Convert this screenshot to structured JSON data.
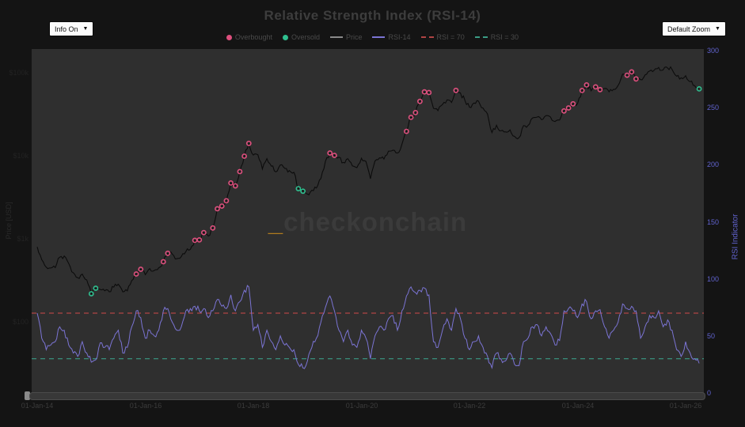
{
  "header": {
    "title": "Relative Strength Index (RSI-14)"
  },
  "controls": {
    "info_dropdown_label": "Info On",
    "zoom_dropdown_label": "Default Zoom",
    "caret": "▼"
  },
  "watermark": {
    "underscore": "_",
    "text": "checkonchain"
  },
  "legend": {
    "items": [
      {
        "label": "Overbought",
        "type": "dot",
        "color": "#dd4f7d"
      },
      {
        "label": "Oversold",
        "type": "dot",
        "color": "#2fbf8f"
      },
      {
        "label": "Price",
        "type": "line",
        "color": "#8a8a8a"
      },
      {
        "label": "RSI-14",
        "type": "line",
        "color": "#7b74d4"
      },
      {
        "label": "RSI = 70",
        "type": "dash",
        "color": "#b04444"
      },
      {
        "label": "RSI = 30",
        "type": "dash",
        "color": "#3a9c85"
      }
    ]
  },
  "colors": {
    "page_bg": "#141414",
    "plot_bg": "#2f2f2f",
    "price_line": "#0c0c0c",
    "rsi_line": "#7b74d4",
    "rsi_70_line": "#b04444",
    "rsi_30_line": "#3a9c85",
    "overbought_marker": "#dd4f7d",
    "oversold_marker": "#2fbf8f",
    "right_axis_text": "#6163cf",
    "watermark_accent": "#b07c1e"
  },
  "chart_data": {
    "type": "line",
    "title": "Relative Strength Index (RSI-14)",
    "x_start_month": "2014-01",
    "x_months_per_point": 1,
    "x_ticks": [
      {
        "month_index": 0,
        "label": "01-Jan-14"
      },
      {
        "month_index": 24,
        "label": "01-Jan-16"
      },
      {
        "month_index": 48,
        "label": "01-Jan-18"
      },
      {
        "month_index": 72,
        "label": "01-Jan-20"
      },
      {
        "month_index": 96,
        "label": "01-Jan-22"
      },
      {
        "month_index": 120,
        "label": "01-Jan-24"
      },
      {
        "month_index": 144,
        "label": "01-Jan-26"
      }
    ],
    "left_axis": {
      "title": "Price [USD]",
      "scale": "log",
      "ticks": [
        {
          "label": "$100k",
          "value": 100000
        },
        {
          "label": "$10k",
          "value": 10000
        },
        {
          "label": "$1k",
          "value": 1000
        },
        {
          "label": "$100",
          "value": 100
        }
      ]
    },
    "right_axis": {
      "title": "RSI Indicator",
      "scale": "linear",
      "range": [
        0,
        300
      ],
      "ticks": [
        300,
        250,
        200,
        150,
        100,
        50,
        0
      ]
    },
    "thresholds": [
      {
        "name": "RSI = 70",
        "value": 70,
        "color": "#b04444"
      },
      {
        "name": "RSI = 30",
        "value": 30,
        "color": "#3a9c85"
      }
    ],
    "series": [
      {
        "name": "Price",
        "axis": "left",
        "color": "#0c0c0c",
        "values": [
          800,
          560,
          455,
          445,
          450,
          600,
          620,
          505,
          390,
          340,
          375,
          320,
          218,
          254,
          245,
          236,
          230,
          262,
          284,
          230,
          236,
          314,
          377,
          430,
          370,
          437,
          416,
          448,
          530,
          670,
          655,
          575,
          610,
          700,
          745,
          960,
          970,
          1190,
          1080,
          1350,
          2300,
          2480,
          2870,
          4700,
          4340,
          6450,
          9900,
          14100,
          10200,
          10300,
          6930,
          9240,
          7490,
          6400,
          7750,
          7020,
          6630,
          6320,
          4020,
          3740,
          3460,
          3850,
          4100,
          5320,
          8560,
          10800,
          10100,
          9600,
          8300,
          9200,
          7560,
          7190,
          9350,
          8550,
          5300,
          8630,
          9450,
          9140,
          11350,
          11650,
          10780,
          13800,
          19700,
          29000,
          33100,
          45200,
          58800,
          57750,
          37300,
          35000,
          41500,
          47100,
          43800,
          61300,
          57000,
          46200,
          38500,
          43200,
          45500,
          37600,
          31800,
          19000,
          23300,
          20050,
          19400,
          20500,
          17150,
          16550,
          23100,
          23150,
          28500,
          29250,
          27200,
          30450,
          29200,
          25900,
          26950,
          34650,
          37700,
          42250,
          42550,
          61200,
          71300,
          60600,
          67500,
          62700,
          64600,
          58950,
          63300,
          70200,
          96400,
          93400,
          102400,
          84350,
          82550,
          94200,
          104600,
          107100,
          115800,
          108200,
          114000,
          109500,
          91000,
          87000,
          92000,
          78000,
          70000,
          64000
        ]
      },
      {
        "name": "RSI-14",
        "axis": "right",
        "color": "#7b74d4",
        "values": [
          70,
          48,
          38,
          42,
          45,
          58,
          55,
          42,
          35,
          32,
          45,
          35,
          27,
          29,
          44,
          40,
          38,
          48,
          55,
          35,
          40,
          58,
          72,
          66,
          48,
          55,
          50,
          55,
          72,
          74,
          62,
          55,
          58,
          72,
          74,
          76,
          72,
          74,
          66,
          72,
          82,
          76,
          74,
          86,
          72,
          80,
          90,
          93,
          55,
          60,
          40,
          55,
          45,
          38,
          50,
          42,
          40,
          38,
          25,
          22,
          28,
          40,
          48,
          62,
          75,
          85,
          72,
          55,
          45,
          55,
          42,
          40,
          55,
          48,
          30,
          50,
          58,
          55,
          65,
          68,
          55,
          72,
          85,
          93,
          88,
          90,
          92,
          86,
          45,
          40,
          55,
          65,
          55,
          74,
          65,
          48,
          38,
          45,
          50,
          40,
          32,
          22,
          35,
          30,
          28,
          35,
          25,
          24,
          45,
          48,
          58,
          60,
          50,
          58,
          52,
          42,
          46,
          72,
          74,
          72,
          66,
          78,
          80,
          65,
          72,
          73,
          58,
          48,
          55,
          62,
          78,
          74,
          76,
          72,
          48,
          58,
          68,
          66,
          72,
          58,
          64,
          55,
          38,
          32,
          45,
          35,
          30,
          26
        ]
      }
    ],
    "markers": {
      "overbought": {
        "color": "#dd4f7d",
        "on_series": "Price",
        "month_indices": [
          22,
          23,
          28,
          29,
          35,
          36,
          37,
          39,
          40,
          41,
          42,
          43,
          44,
          45,
          46,
          47,
          65,
          66,
          82,
          83,
          84,
          85,
          86,
          87,
          93,
          117,
          118,
          119,
          121,
          122,
          124,
          125,
          131,
          132,
          133
        ]
      },
      "oversold": {
        "color": "#2fbf8f",
        "on_series": "Price",
        "month_indices": [
          12,
          13,
          58,
          59,
          147
        ]
      }
    },
    "grid": false,
    "legend_position": "top-center"
  }
}
